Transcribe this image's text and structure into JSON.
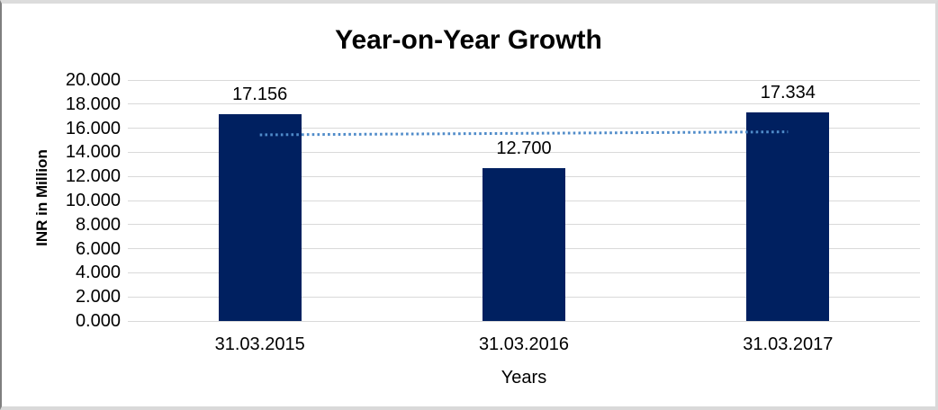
{
  "window": {
    "background": "#ffffff",
    "border_color": "#d9d9d9",
    "border_left_color": "#7f7f7f"
  },
  "chart_data": {
    "type": "bar",
    "title": "Year-on-Year Growth",
    "xlabel": "Years",
    "ylabel": "INR in Million",
    "categories": [
      "31.03.2015",
      "31.03.2016",
      "31.03.2017"
    ],
    "values": [
      17.156,
      12.7,
      17.334
    ],
    "value_labels": [
      "17.156",
      "12.700",
      "17.334"
    ],
    "ylim": [
      0,
      20
    ],
    "ytick_step": 2,
    "ytick_labels": [
      "0.000",
      "2.000",
      "4.000",
      "6.000",
      "8.000",
      "10.000",
      "12.000",
      "14.000",
      "16.000",
      "18.000",
      "20.000"
    ],
    "bar_color": "#002060",
    "gridline_color": "#d9d9d9",
    "text_color": "#000000",
    "legend": "none",
    "grid": true,
    "trendline": {
      "style": "dotted",
      "color": "#4f8bc9",
      "start_value": 15.45,
      "end_value": 15.7
    }
  }
}
